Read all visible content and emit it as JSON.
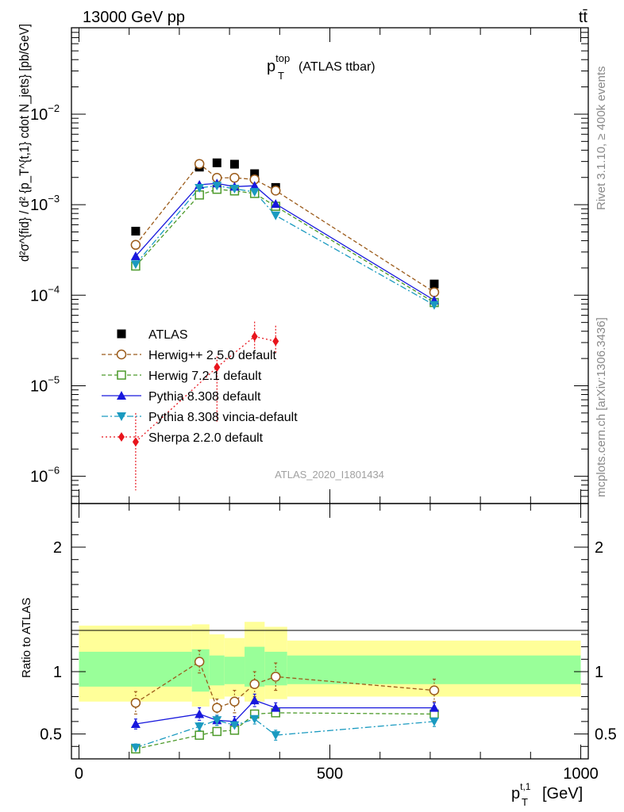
{
  "header": {
    "energy_label": "13000 GeV pp",
    "process_label": "tt̄"
  },
  "side_labels": {
    "rivet": "Rivet 3.1.10, ≥ 400k events",
    "mcplots": "mcplots.cern.ch [arXiv:1306.3436]"
  },
  "chart_data": {
    "type": "line",
    "title": "p_T^top (ATLAS ttbar)",
    "title_main": "p",
    "title_sub": "T",
    "title_sup": "top",
    "title_rest": "(ATLAS ttbar)",
    "analysis_id": "ATLAS_2020_I1801434",
    "xlabel": "p_T^{t,1} [GeV]",
    "xlabel_main": "p",
    "xlabel_sub": "T",
    "xlabel_sup": "t,1",
    "xlabel_unit": "[GeV]",
    "ylabel_main": "d²σ^{fid} / d² {p_T^{t,1} cdot N_jets} [pb/GeV]",
    "ylabel_ratio": "Ratio to ATLAS",
    "xlim": [
      -15,
      1015
    ],
    "ylim_main": [
      5e-07,
      0.09
    ],
    "ylim_ratio": [
      0.3,
      2.35
    ],
    "x_ticks": [
      0,
      500,
      1000
    ],
    "x_tick_labels": [
      "0",
      "500",
      "1000"
    ],
    "y_ticks_main": [
      {
        "base": "10",
        "exp": "−6"
      },
      {
        "base": "10",
        "exp": "−5"
      },
      {
        "base": "10",
        "exp": "−4"
      },
      {
        "base": "10",
        "exp": "−3"
      },
      {
        "base": "10",
        "exp": "−2"
      }
    ],
    "y_ticks_ratio": [
      "0.5",
      "1",
      "2"
    ],
    "ratio_bands": [
      {
        "x0": 0,
        "x1": 225,
        "lo2": 0.76,
        "hi2": 1.37,
        "lo1": 0.88,
        "hi1": 1.16
      },
      {
        "x0": 225,
        "x1": 260,
        "lo2": 0.72,
        "hi2": 1.38,
        "lo1": 0.84,
        "hi1": 1.18
      },
      {
        "x0": 260,
        "x1": 290,
        "lo2": 0.78,
        "hi2": 1.3,
        "lo1": 0.89,
        "hi1": 1.13
      },
      {
        "x0": 290,
        "x1": 330,
        "lo2": 0.8,
        "hi2": 1.27,
        "lo1": 0.9,
        "hi1": 1.12
      },
      {
        "x0": 330,
        "x1": 370,
        "lo2": 0.76,
        "hi2": 1.4,
        "lo1": 0.88,
        "hi1": 1.2
      },
      {
        "x0": 370,
        "x1": 415,
        "lo2": 0.78,
        "hi2": 1.36,
        "lo1": 0.89,
        "hi1": 1.16
      },
      {
        "x0": 415,
        "x1": 1000,
        "lo2": 0.8,
        "hi2": 1.25,
        "lo1": 0.9,
        "hi1": 1.13
      }
    ],
    "series": [
      {
        "name": "ATLAS",
        "color": "#000000",
        "marker": "square-filled",
        "dash": "none",
        "x": [
          113,
          240,
          275,
          310,
          350,
          392,
          708
        ],
        "values": [
          0.00051,
          0.0026,
          0.0029,
          0.0028,
          0.0022,
          0.00155,
          0.000133
        ],
        "ratio": [
          1,
          1,
          1,
          1,
          1,
          1,
          1
        ]
      },
      {
        "name": "Herwig++ 2.5.0 default",
        "color": "#9b5b1a",
        "marker": "circle-open",
        "dash": "5,3",
        "x": [
          113,
          240,
          275,
          310,
          350,
          392,
          708
        ],
        "values": [
          0.00036,
          0.00282,
          0.00198,
          0.00198,
          0.0019,
          0.00143,
          0.000108
        ],
        "ratio": [
          0.75,
          1.08,
          0.71,
          0.76,
          0.9,
          0.96,
          0.85
        ],
        "ratio_err": [
          0.09,
          0.09,
          0.07,
          0.09,
          0.1,
          0.11,
          0.09
        ]
      },
      {
        "name": "Herwig 7.2.1 default",
        "color": "#4c9a2a",
        "marker": "square-open",
        "dash": "5,3",
        "x": [
          113,
          240,
          275,
          310,
          350,
          392,
          708
        ],
        "values": [
          0.00021,
          0.00128,
          0.00148,
          0.00142,
          0.00133,
          0.00096,
          8.3e-05
        ],
        "ratio": [
          0.38,
          0.49,
          0.52,
          0.53,
          0.66,
          0.67,
          0.66
        ],
        "ratio_err": [
          0.02,
          0.03,
          0.03,
          0.03,
          0.03,
          0.03,
          0.03
        ]
      },
      {
        "name": "Pythia 8.308 default",
        "color": "#1818dd",
        "marker": "triangle-up",
        "dash": "none",
        "x": [
          113,
          240,
          275,
          310,
          350,
          392,
          708
        ],
        "values": [
          0.00027,
          0.00166,
          0.00172,
          0.00158,
          0.00162,
          0.00102,
          8.8e-05
        ],
        "ratio": [
          0.58,
          0.66,
          0.61,
          0.6,
          0.77,
          0.71,
          0.71
        ],
        "ratio_err": [
          0.04,
          0.05,
          0.04,
          0.04,
          0.05,
          0.04,
          0.04
        ]
      },
      {
        "name": "Pythia 8.308 vincia-default",
        "color": "#1a9ac0",
        "marker": "triangle-down",
        "dash": "8,3,2,3",
        "x": [
          113,
          240,
          275,
          310,
          350,
          392,
          708
        ],
        "values": [
          0.00022,
          0.00153,
          0.00162,
          0.0015,
          0.00138,
          0.00076,
          7.8e-05
        ],
        "ratio": [
          0.39,
          0.56,
          0.61,
          0.57,
          0.62,
          0.49,
          0.6
        ],
        "ratio_err": [
          0.03,
          0.03,
          0.04,
          0.04,
          0.04,
          0.04,
          0.04
        ]
      },
      {
        "name": "Sherpa 2.2.0 default",
        "color": "#e8141c",
        "marker": "diamond",
        "dash": "2,3",
        "x": [
          113,
          275,
          350,
          392
        ],
        "values": [
          2.4e-06,
          1.6e-05,
          3.5e-05,
          3.1e-05
        ],
        "err_lo": [
          1.7e-06,
          1.2e-05,
          1e-05,
          8e-06
        ],
        "err_hi": [
          2.6e-06,
          5e-06,
          1.6e-05,
          1.5e-05
        ]
      }
    ]
  }
}
